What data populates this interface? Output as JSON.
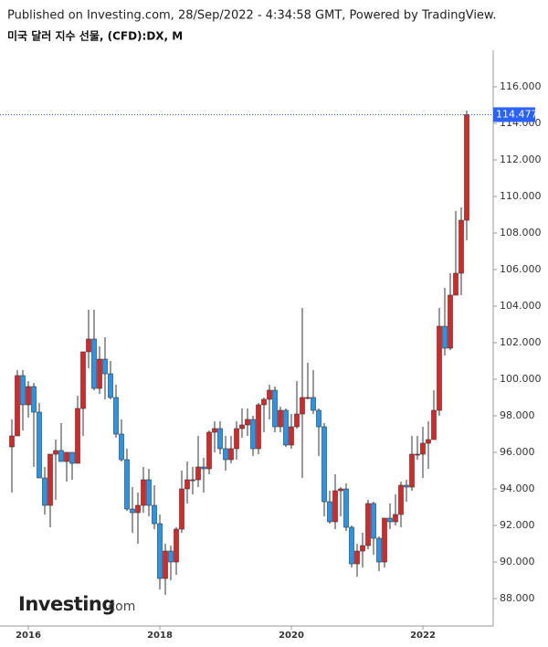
{
  "header": {
    "published": "Published on Investing.com, 28/Sep/2022 - 4:34:58 GMT, Powered by TradingView."
  },
  "logo": {
    "main": "Investing",
    "suffix": ".com"
  },
  "chart_data": {
    "type": "candlestick",
    "title": "미국 달러 지수 선물, (CFD):DX, M",
    "categories": [
      null,
      null,
      null,
      "2016",
      null,
      null,
      null,
      null,
      null,
      null,
      null,
      null,
      null,
      null,
      null,
      null,
      null,
      null,
      null,
      null,
      null,
      null,
      null,
      null,
      null,
      null,
      null,
      "2018",
      null,
      null,
      null,
      null,
      null,
      null,
      null,
      null,
      null,
      null,
      null,
      null,
      null,
      null,
      null,
      null,
      null,
      null,
      null,
      null,
      null,
      null,
      null,
      "2020",
      null,
      null,
      null,
      null,
      null,
      null,
      null,
      null,
      null,
      null,
      null,
      null,
      null,
      null,
      null,
      null,
      null,
      null,
      null,
      null,
      null,
      null,
      null,
      "2022",
      null,
      null,
      null,
      null,
      null,
      null,
      null,
      null
    ],
    "open": [
      96.3,
      96.9,
      100.2,
      98.6,
      99.6,
      98.2,
      94.6,
      93.1,
      95.9,
      96.1,
      95.5,
      96.0,
      95.4,
      98.4,
      101.5,
      102.2,
      99.5,
      101.1,
      100.3,
      99.0,
      97.0,
      95.6,
      92.9,
      92.7,
      93.1,
      94.5,
      93.1,
      92.1,
      89.1,
      90.6,
      90.0,
      91.8,
      94.0,
      94.5,
      94.5,
      95.2,
      95.1,
      97.1,
      97.3,
      96.2,
      95.6,
      96.2,
      97.3,
      97.5,
      97.8,
      96.2,
      98.6,
      98.9,
      99.4,
      97.4,
      98.3,
      96.4,
      97.4,
      98.1,
      99.0,
      99.0,
      98.3,
      97.4,
      93.3,
      92.2,
      93.9,
      94.0,
      91.9,
      89.9,
      90.6,
      90.9,
      93.2,
      91.3,
      90.0,
      92.4,
      92.2,
      92.6,
      94.2,
      94.1,
      95.9,
      95.9,
      96.5,
      96.7,
      98.3,
      102.9,
      101.7,
      104.6,
      105.8,
      108.7
    ],
    "high": [
      97.8,
      100.5,
      100.5,
      99.9,
      99.8,
      98.7,
      95.2,
      95.9,
      96.7,
      97.6,
      96.0,
      96.0,
      99.1,
      101.5,
      103.8,
      103.8,
      101.8,
      102.3,
      101.0,
      99.7,
      97.8,
      96.2,
      94.1,
      93.8,
      95.2,
      95.1,
      94.2,
      92.6,
      91.0,
      90.9,
      91.9,
      95.0,
      95.5,
      95.2,
      96.9,
      95.7,
      97.2,
      97.7,
      97.7,
      96.9,
      96.9,
      97.7,
      98.4,
      98.4,
      98.0,
      98.7,
      99.0,
      99.7,
      99.6,
      98.5,
      98.4,
      98.1,
      99.9,
      103.9,
      100.9,
      100.5,
      98.4,
      97.6,
      93.9,
      94.8,
      94.1,
      94.3,
      92.0,
      91.0,
      91.6,
      93.4,
      93.3,
      91.4,
      92.4,
      93.2,
      93.7,
      94.4,
      94.5,
      96.9,
      96.9,
      97.4,
      97.7,
      99.4,
      103.9,
      105.0,
      105.8,
      109.2,
      109.4,
      114.7
    ],
    "low": [
      93.8,
      96.9,
      97.2,
      97.9,
      95.2,
      94.6,
      92.6,
      91.9,
      93.4,
      95.5,
      94.4,
      94.5,
      95.4,
      96.9,
      100.6,
      99.4,
      99.2,
      98.9,
      98.9,
      96.8,
      95.5,
      92.8,
      91.6,
      91.0,
      92.7,
      92.5,
      91.8,
      88.5,
      88.2,
      89.0,
      89.3,
      91.6,
      93.2,
      93.7,
      94.1,
      93.8,
      94.8,
      96.0,
      95.9,
      95.0,
      95.4,
      95.6,
      96.8,
      96.9,
      95.8,
      95.9,
      97.1,
      97.8,
      97.1,
      97.1,
      96.3,
      96.2,
      97.3,
      94.6,
      98.9,
      98.1,
      95.8,
      92.5,
      92.1,
      91.8,
      92.5,
      91.7,
      89.7,
      89.2,
      89.7,
      90.7,
      90.4,
      89.5,
      89.7,
      91.8,
      92.0,
      91.9,
      93.3,
      93.9,
      95.6,
      94.6,
      95.1,
      96.9,
      98.0,
      101.3,
      101.6,
      104.6,
      104.6,
      107.6
    ],
    "close": [
      96.9,
      100.2,
      98.6,
      99.6,
      98.2,
      94.6,
      93.1,
      95.9,
      96.1,
      95.5,
      96.0,
      95.4,
      98.4,
      101.5,
      102.2,
      99.5,
      101.1,
      100.3,
      99.0,
      97.0,
      95.6,
      92.9,
      92.7,
      93.1,
      94.5,
      93.1,
      92.1,
      89.1,
      90.6,
      90.0,
      91.8,
      94.0,
      94.5,
      94.5,
      95.2,
      95.1,
      97.1,
      97.3,
      96.2,
      95.6,
      96.2,
      97.3,
      97.5,
      97.8,
      96.2,
      98.6,
      98.9,
      99.4,
      97.4,
      98.3,
      96.4,
      97.4,
      98.1,
      99.0,
      99.0,
      98.3,
      97.4,
      93.3,
      92.2,
      93.9,
      94.0,
      91.9,
      89.9,
      90.6,
      90.9,
      93.2,
      91.3,
      90.0,
      92.4,
      92.2,
      92.6,
      94.2,
      94.1,
      95.9,
      95.9,
      96.5,
      96.7,
      98.3,
      102.9,
      101.7,
      104.6,
      105.8,
      108.7,
      114.477
    ],
    "up_color": "#e02424",
    "down_color": "#2196f3",
    "last_price_color": "#2962ff",
    "ylim": [
      86.5,
      118
    ],
    "yticks": [
      {
        "value": 88,
        "label": "88.000"
      },
      {
        "value": 90,
        "label": "90.000"
      },
      {
        "value": 92,
        "label": "92.000"
      },
      {
        "value": 94,
        "label": "94.000"
      },
      {
        "value": 96,
        "label": "96.000"
      },
      {
        "value": 98,
        "label": "98.000"
      },
      {
        "value": 100,
        "label": "100.000"
      },
      {
        "value": 102,
        "label": "102.000"
      },
      {
        "value": 104,
        "label": "104.000"
      },
      {
        "value": 106,
        "label": "106.000"
      },
      {
        "value": 108,
        "label": "108.000"
      },
      {
        "value": 110,
        "label": "110.000"
      },
      {
        "value": 112,
        "label": "112.000"
      },
      {
        "value": 114,
        "label": "114.000"
      },
      {
        "value": 116,
        "label": "116.000"
      }
    ],
    "grid": false
  }
}
